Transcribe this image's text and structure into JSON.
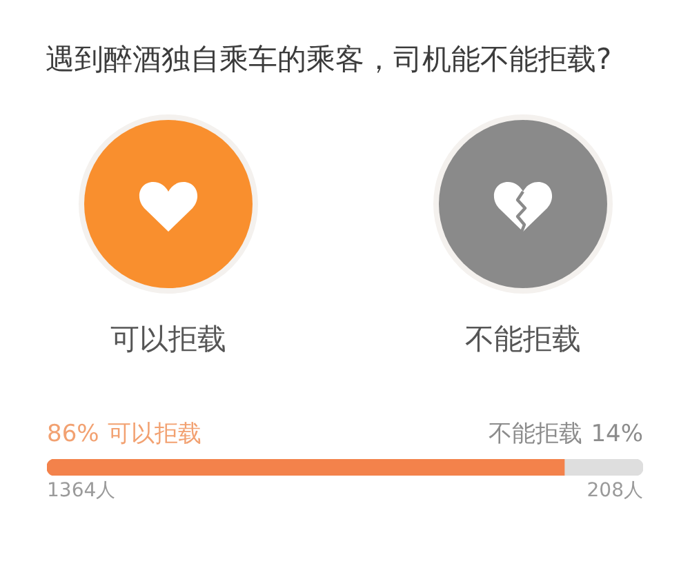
{
  "chart_data": {
    "type": "bar",
    "orientation": "horizontal",
    "stacked": true,
    "title": "遇到醉酒独自乘车的乘客，司机能不能拒载?",
    "categories": [
      null
    ],
    "series": [
      {
        "name": "可以拒载",
        "color": "#f3824b",
        "values": [
          1364
        ],
        "value_labels": [
          "1364人"
        ]
      },
      {
        "name": "不能拒载",
        "color": "#dedede",
        "values": [
          208
        ],
        "value_labels": [
          "208人"
        ]
      }
    ],
    "annotations": [
      "可以拒载",
      "不能拒载",
      "86%",
      "14%"
    ]
  }
}
